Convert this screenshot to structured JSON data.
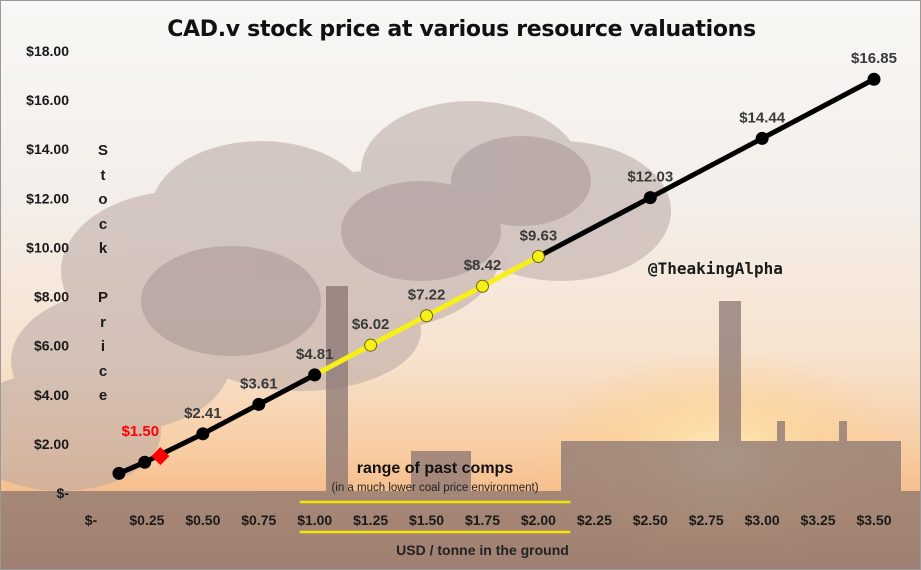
{
  "chart_data": {
    "type": "line",
    "title": "CAD.v stock price at various resource valuations",
    "xlabel": "USD / tonne  in the ground",
    "ylabel": "Stock Price",
    "ylabel_letters": "S\nt\no\nc\nk\n\nP\nr\ni\nc\ne",
    "watermark": "@TheakingAlpha",
    "xlim": [
      0,
      3.5
    ],
    "ylim": [
      0,
      18
    ],
    "x_ticks": [
      0,
      0.25,
      0.5,
      0.75,
      1.0,
      1.25,
      1.5,
      1.75,
      2.0,
      2.25,
      2.5,
      2.75,
      3.0,
      3.25,
      3.5
    ],
    "x_tick_labels": [
      "$-",
      "$0.25",
      "$0.50",
      "$0.75",
      "$1.00",
      "$1.25",
      "$1.50",
      "$1.75",
      "$2.00",
      "$2.25",
      "$2.50",
      "$2.75",
      "$3.00",
      "$3.25",
      "$3.50"
    ],
    "y_ticks": [
      0,
      2,
      4,
      6,
      8,
      10,
      12,
      14,
      16,
      18
    ],
    "y_tick_labels": [
      "$-",
      "$2.00",
      "$4.00",
      "$6.00",
      "$8.00",
      "$10.00",
      "$12.00",
      "$14.00",
      "$16.00",
      "$18.00"
    ],
    "series": [
      {
        "name": "Stock price",
        "points": [
          {
            "x": 0.125,
            "y": 0.8
          },
          {
            "x": 0.24,
            "y": 1.25
          },
          {
            "x": 0.5,
            "y": 2.41,
            "label": "$2.41"
          },
          {
            "x": 0.75,
            "y": 3.61,
            "label": "$3.61"
          },
          {
            "x": 1.0,
            "y": 4.81,
            "label": "$4.81"
          },
          {
            "x": 1.25,
            "y": 6.02,
            "label": "$6.02"
          },
          {
            "x": 1.5,
            "y": 7.22,
            "label": "$7.22"
          },
          {
            "x": 1.75,
            "y": 8.42,
            "label": "$8.42"
          },
          {
            "x": 2.0,
            "y": 9.63,
            "label": "$9.63"
          },
          {
            "x": 2.5,
            "y": 12.03,
            "label": "$12.03"
          },
          {
            "x": 3.0,
            "y": 14.44,
            "label": "$14.44"
          },
          {
            "x": 3.5,
            "y": 16.85,
            "label": "$16.85"
          }
        ]
      }
    ],
    "highlight_range": {
      "x_from": 1.0,
      "x_to": 2.0
    },
    "current_point": {
      "x": 0.31,
      "y": 1.5,
      "label": "$1.50"
    },
    "comps_annotation": {
      "title": "range of past comps",
      "subtitle": "(in a much lower coal price environment)"
    },
    "colors": {
      "line": "#000000",
      "highlight": "#f7f018",
      "current": "#ff0000",
      "label": "#3a3a3a",
      "axis_text": "#1a1a1a",
      "underline": "#f2e600"
    }
  }
}
